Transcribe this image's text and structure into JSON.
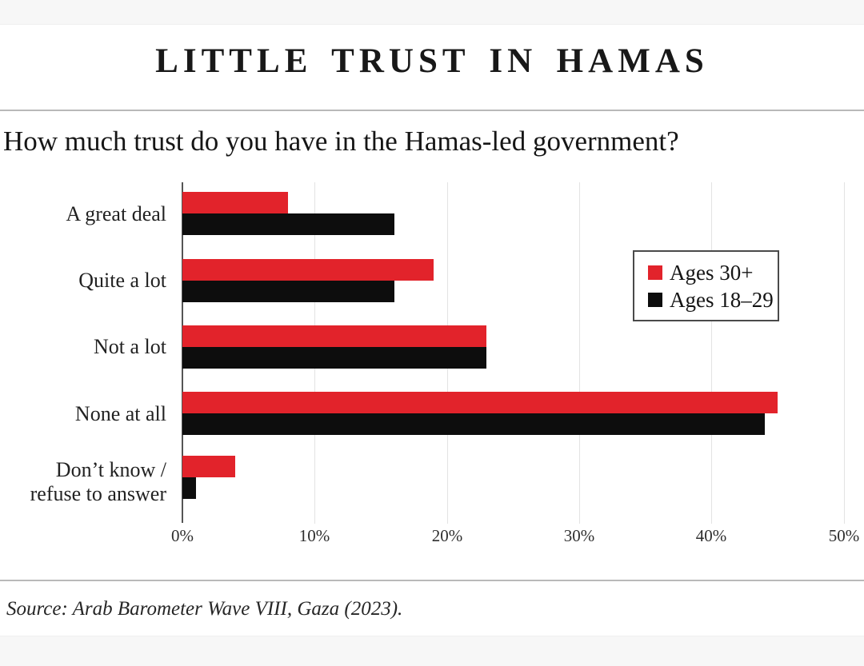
{
  "header": {
    "title": "LITTLE TRUST IN HAMAS",
    "question": "How much trust do you have in the Hamas-led government?"
  },
  "footer": {
    "source": "Source: Arab Barometer Wave VIII, Gaza (2023)."
  },
  "colors": {
    "ages_30_plus": "#e2232b",
    "ages_18_29": "#0d0d0d",
    "gridline": "#e3e3e3",
    "axis": "#555555"
  },
  "chart_data": {
    "type": "bar",
    "orientation": "horizontal",
    "title": "How much trust do you have in the Hamas-led government?",
    "xlabel": "",
    "ylabel": "",
    "xlim": [
      0,
      50
    ],
    "grid": true,
    "legend_position": "right",
    "categories": [
      [
        "A great deal"
      ],
      [
        "Quite a lot"
      ],
      [
        "Not a lot"
      ],
      [
        "None at all"
      ],
      [
        "Don’t know /",
        "refuse to answer"
      ]
    ],
    "series": [
      {
        "name": "Ages 30+",
        "color": "#e2232b",
        "values": [
          8,
          19,
          23,
          45,
          4
        ]
      },
      {
        "name": "Ages 18–29",
        "color": "#0d0d0d",
        "values": [
          16,
          16,
          23,
          44,
          1
        ]
      }
    ],
    "xticks": [
      "0%",
      "10%",
      "20%",
      "30%",
      "40%",
      "50%"
    ]
  }
}
